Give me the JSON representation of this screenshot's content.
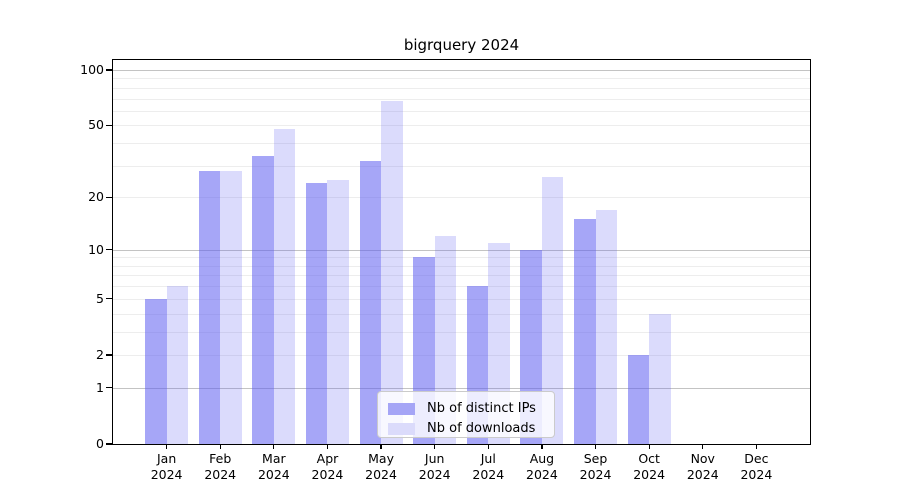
{
  "title": "bigrquery 2024",
  "colors": {
    "bar_distinct_ips_fill": "rgba(92,92,240,0.55)",
    "bar_downloads_fill": "rgba(92,92,240,0.22)",
    "bar_distinct_ips_solid": "#a5a5f6",
    "bar_downloads_solid": "#dbdbfb",
    "grid_major": "#c3c3c3",
    "grid_minor": "#ededed",
    "axis": "#000000",
    "legend_border": "#cbcbcb"
  },
  "legend": {
    "items": [
      {
        "label": "Nb of distinct IPs",
        "swatch_color": "#a5a5f6"
      },
      {
        "label": "Nb of downloads",
        "swatch_color": "#dbdbfb"
      }
    ]
  },
  "chart_data": {
    "type": "bar",
    "title": "bigrquery 2024",
    "categories": [
      "Jan 2024",
      "Feb 2024",
      "Mar 2024",
      "Apr 2024",
      "May 2024",
      "Jun 2024",
      "Jul 2024",
      "Aug 2024",
      "Sep 2024",
      "Oct 2024",
      "Nov 2024",
      "Dec 2024"
    ],
    "series": [
      {
        "name": "Nb of distinct IPs",
        "color": "rgba(92,92,240,0.55)",
        "swatch": "#a5a5f6",
        "values": [
          5,
          28,
          34,
          24,
          32,
          9,
          6,
          10,
          15,
          2,
          0,
          0
        ]
      },
      {
        "name": "Nb of downloads",
        "color": "rgba(92,92,240,0.22)",
        "swatch": "#dbdbfb",
        "values": [
          6,
          28,
          48,
          25,
          68,
          12,
          11,
          26,
          17,
          4,
          0,
          0
        ]
      }
    ],
    "xlabel": "",
    "ylabel": "",
    "yscale": "log1p",
    "ylim": [
      0,
      113
    ],
    "yticks": [
      100,
      50,
      20,
      10,
      5,
      2,
      1,
      0
    ],
    "grid": "horizontal log gridlines, majors at 1/10/100, minors at 2-9 and 20-90",
    "legend_position": "lower center inside plot"
  }
}
